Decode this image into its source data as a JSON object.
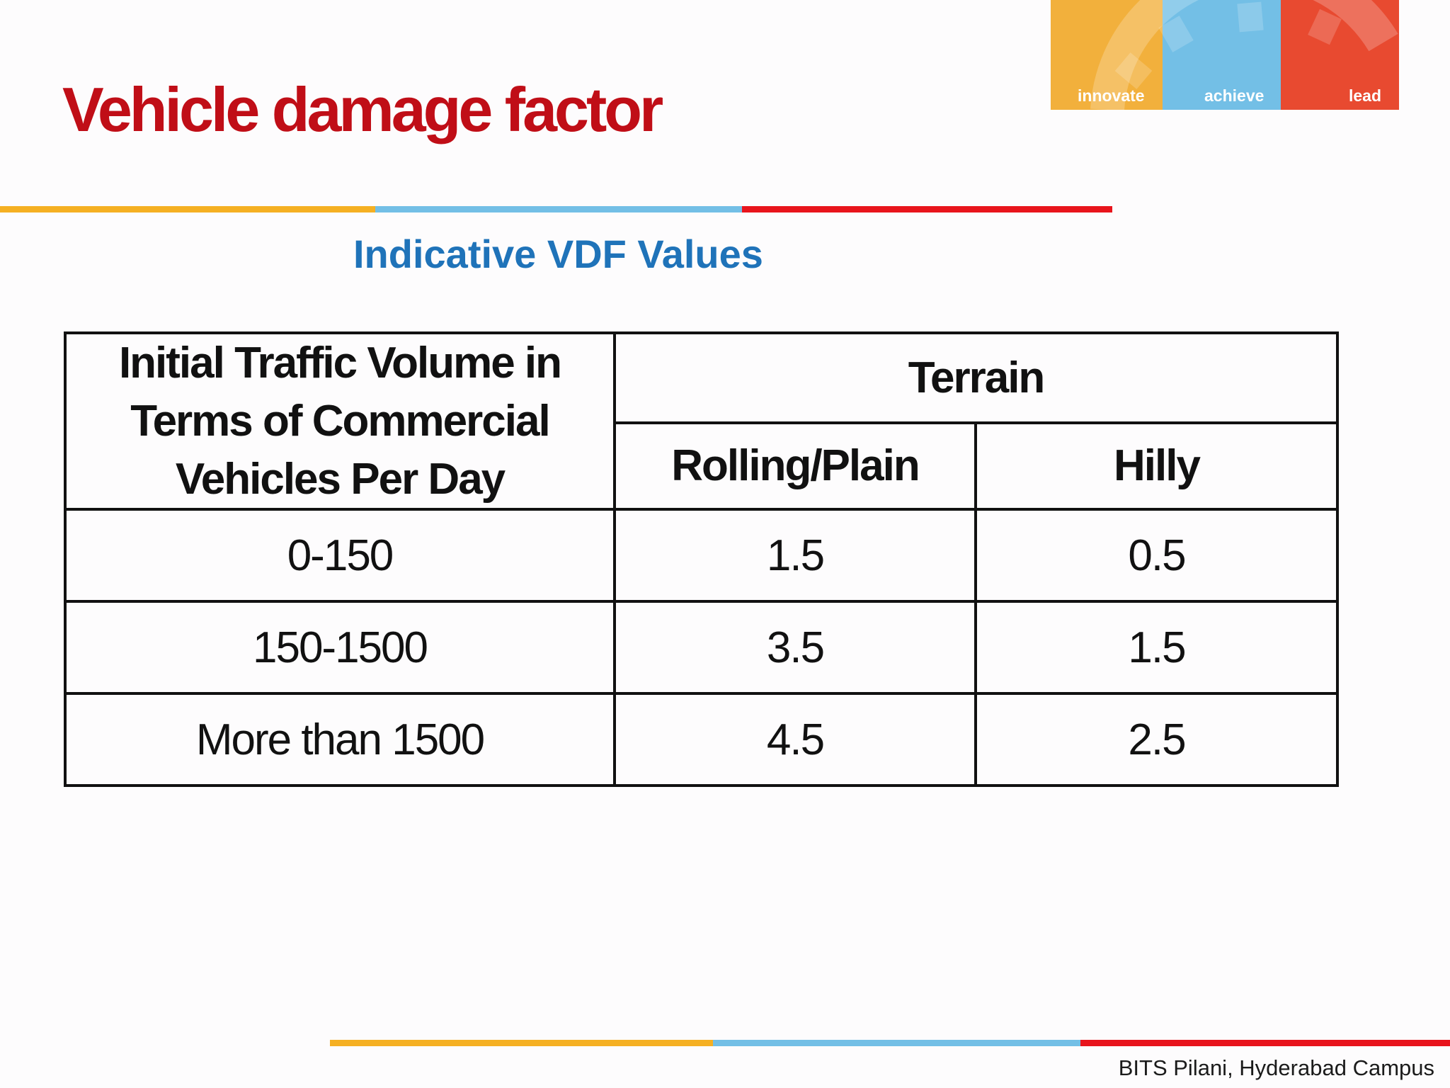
{
  "slide": {
    "title": "Vehicle damage factor",
    "subtitle": "Indicative VDF Values",
    "footer": "BITS Pilani, Hyderabad Campus"
  },
  "logo": {
    "words": [
      "innovate",
      "achieve",
      "lead"
    ],
    "colors": [
      "#f2b03c",
      "#73bfe6",
      "#e84a30"
    ]
  },
  "accent_colors": {
    "title": "#c00e17",
    "subtitle": "#1f73b9",
    "bar_orange": "#f5b023",
    "bar_blue": "#73bfe6",
    "bar_red": "#e8141c"
  },
  "table": {
    "corner_header": "Initial Traffic Volume in Terms of Commercial Vehicles Per Day",
    "group_header": "Terrain",
    "columns": [
      "Rolling/Plain",
      "Hilly"
    ],
    "rows": [
      {
        "volume": "0-150",
        "rolling_plain": "1.5",
        "hilly": "0.5"
      },
      {
        "volume": "150-1500",
        "rolling_plain": "3.5",
        "hilly": "1.5"
      },
      {
        "volume": "More than 1500",
        "rolling_plain": "4.5",
        "hilly": "2.5"
      }
    ]
  }
}
